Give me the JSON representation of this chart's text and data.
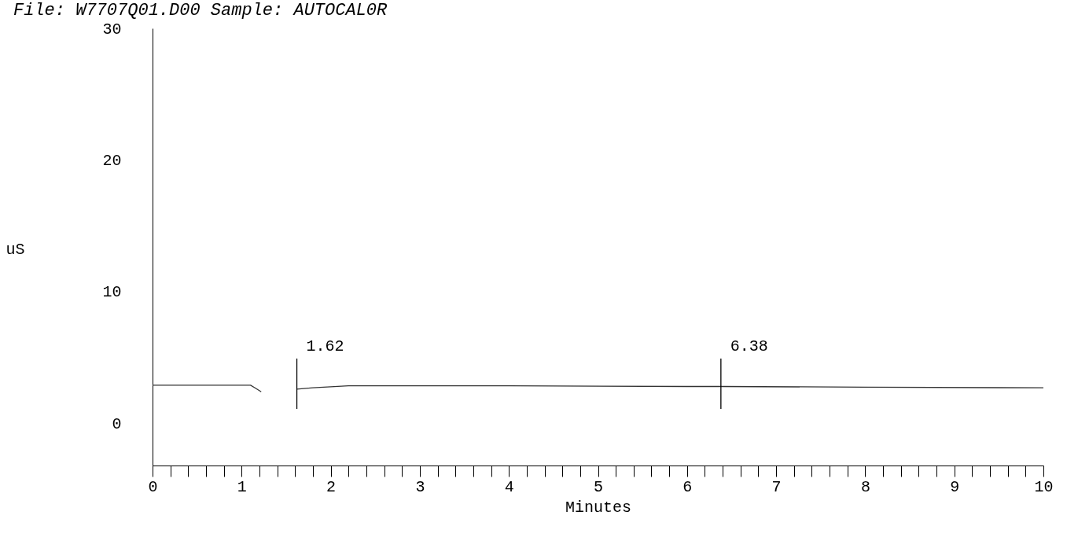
{
  "chart_data": {
    "type": "line",
    "title": "File: W7707Q01.D00 Sample: AUTOCAL0R",
    "xlabel": "Minutes",
    "ylabel": "uS",
    "x": [
      0,
      1.1,
      1.15,
      1.22,
      1.3,
      1.62,
      1.8,
      2.2,
      4,
      6,
      6.38,
      8,
      10
    ],
    "series": [
      {
        "color": "#333333",
        "values": [
          2.9,
          2.9,
          2.7,
          2.4,
          null,
          2.6,
          2.7,
          2.85,
          2.85,
          2.8,
          2.8,
          2.75,
          2.7
        ]
      }
    ],
    "xlim": [
      0,
      10
    ],
    "ylim": [
      -3.2,
      30
    ],
    "xticks": [
      0,
      {
        "value": 0.2,
        "label": null
      },
      {
        "value": 0.4,
        "label": null
      },
      {
        "value": 0.6,
        "label": null
      },
      {
        "value": 0.8,
        "label": null
      },
      1,
      {
        "value": 1.2,
        "label": null
      },
      {
        "value": 1.4,
        "label": null
      },
      {
        "value": 1.6,
        "label": null
      },
      {
        "value": 1.8,
        "label": null
      },
      2,
      {
        "value": 2.2,
        "label": null
      },
      {
        "value": 2.4,
        "label": null
      },
      {
        "value": 2.6,
        "label": null
      },
      {
        "value": 2.8,
        "label": null
      },
      3,
      {
        "value": 3.2,
        "label": null
      },
      {
        "value": 3.4,
        "label": null
      },
      {
        "value": 3.6,
        "label": null
      },
      {
        "value": 3.8,
        "label": null
      },
      4,
      {
        "value": 4.2,
        "label": null
      },
      {
        "value": 4.4,
        "label": null
      },
      {
        "value": 4.6,
        "label": null
      },
      {
        "value": 4.8,
        "label": null
      },
      5,
      {
        "value": 5.2,
        "label": null
      },
      {
        "value": 5.4,
        "label": null
      },
      {
        "value": 5.6,
        "label": null
      },
      {
        "value": 5.8,
        "label": null
      },
      6,
      {
        "value": 6.2,
        "label": null
      },
      {
        "value": 6.4,
        "label": null
      },
      {
        "value": 6.6,
        "label": null
      },
      {
        "value": 6.8,
        "label": null
      },
      7,
      {
        "value": 7.2,
        "label": null
      },
      {
        "value": 7.4,
        "label": null
      },
      {
        "value": 7.6,
        "label": null
      },
      {
        "value": 7.8,
        "label": null
      },
      8,
      {
        "value": 8.2,
        "label": null
      },
      {
        "value": 8.4,
        "label": null
      },
      {
        "value": 8.6,
        "label": null
      },
      {
        "value": 8.8,
        "label": null
      },
      9,
      {
        "value": 9.2,
        "label": null
      },
      {
        "value": 9.4,
        "label": null
      },
      {
        "value": 9.6,
        "label": null
      },
      {
        "value": 9.8,
        "label": null
      },
      10
    ],
    "yticks": [
      0,
      10,
      20,
      30
    ],
    "ref_lines": [
      {
        "axis": "x",
        "value": 1.62,
        "label": "1.62",
        "color": "#000000"
      },
      {
        "axis": "x",
        "value": 6.38,
        "label": "6.38",
        "color": "#000000"
      }
    ],
    "grid": false,
    "legend": false,
    "marker": "none",
    "line_style": "solid"
  }
}
